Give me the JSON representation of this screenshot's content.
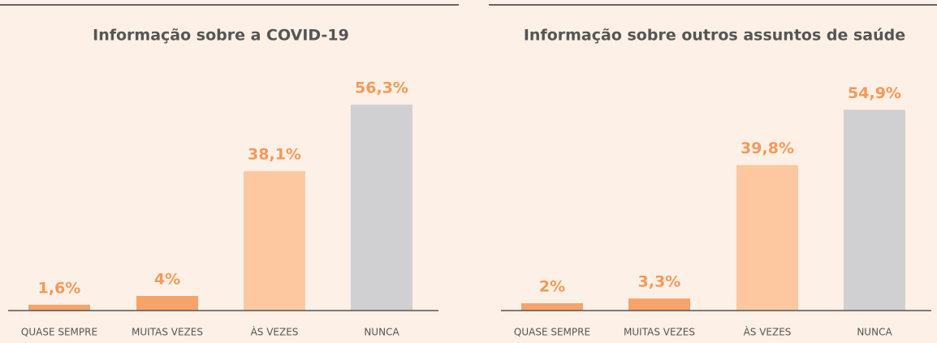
{
  "chart_data": [
    {
      "type": "bar",
      "title": "Informação sobre a COVID-19",
      "categories": [
        "QUASE SEMPRE",
        "MUITAS VEZES",
        "ÀS VEZES",
        "NUNCA"
      ],
      "values": [
        1.6,
        4,
        38.1,
        56.3
      ],
      "value_labels": [
        "1,6%",
        "4%",
        "38,1%",
        "56,3%"
      ],
      "colors": [
        "#f4a46a",
        "#f4a46a",
        "#fdc8a0",
        "#d0d0d2"
      ]
    },
    {
      "type": "bar",
      "title": "Informação sobre outros assuntos de saúde",
      "categories": [
        "QUASE SEMPRE",
        "MUITAS VEZES",
        "ÀS VEZES",
        "NUNCA"
      ],
      "values": [
        2,
        3.3,
        39.8,
        54.9
      ],
      "value_labels": [
        "2%",
        "3,3%",
        "39,8%",
        "54,9%"
      ],
      "colors": [
        "#f4a46a",
        "#f4a46a",
        "#fdc8a0",
        "#d0d0d2"
      ]
    }
  ]
}
